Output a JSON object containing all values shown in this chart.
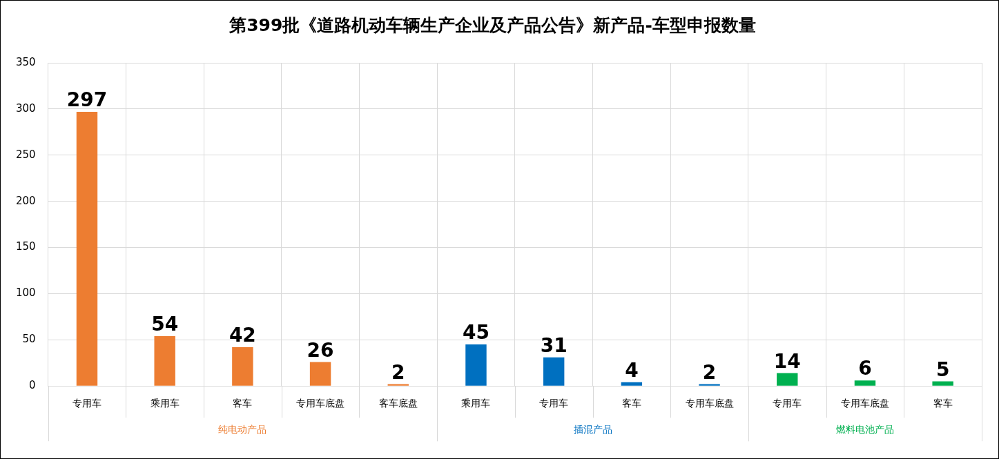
{
  "chart_data": {
    "type": "bar",
    "title": "第399批《道路机动车辆生产企业及产品公告》新产品-车型申报数量",
    "categories": [
      "专用车",
      "乘用车",
      "客车",
      "专用车底盘",
      "客车底盘",
      "乘用车",
      "专用车",
      "客车",
      "专用车底盘",
      "专用车",
      "专用车底盘",
      "客车"
    ],
    "series": [
      {
        "name": "纯电动产品",
        "color": "#ed7d31",
        "values": [
          297,
          54,
          42,
          26,
          2,
          null,
          null,
          null,
          null,
          null,
          null,
          null
        ]
      },
      {
        "name": "插混产品",
        "color": "#0070c0",
        "values": [
          null,
          null,
          null,
          null,
          null,
          45,
          31,
          4,
          2,
          null,
          null,
          null
        ]
      },
      {
        "name": "燃料电池产品",
        "color": "#00b050",
        "values": [
          null,
          null,
          null,
          null,
          null,
          null,
          null,
          null,
          null,
          14,
          6,
          5
        ]
      }
    ],
    "ylim": [
      0,
      350
    ],
    "yticks": [
      0,
      50,
      100,
      150,
      200,
      250,
      300,
      350
    ],
    "grid": true,
    "legend": false,
    "data_labels": true
  }
}
